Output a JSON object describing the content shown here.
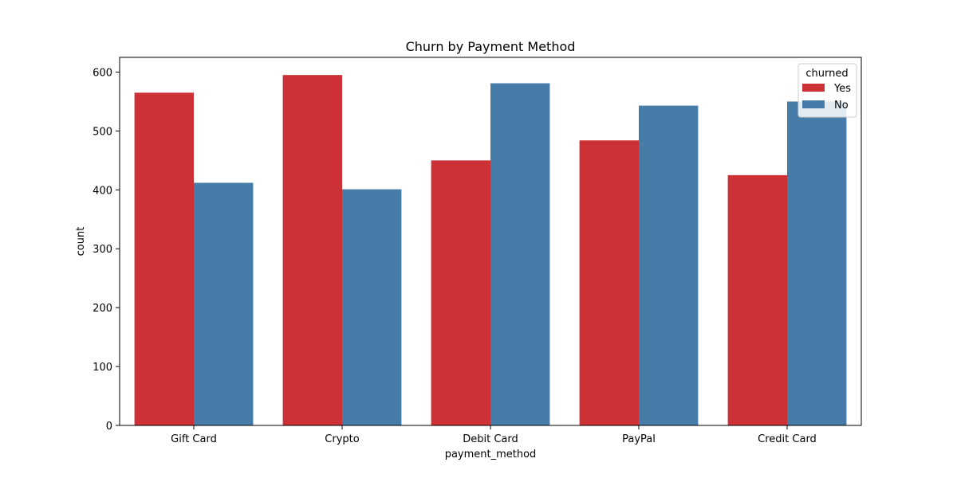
{
  "chart_data": {
    "type": "bar",
    "title": "Churn by Payment Method",
    "xlabel": "payment_method",
    "ylabel": "count",
    "categories": [
      "Gift Card",
      "Crypto",
      "Debit Card",
      "PayPal",
      "Credit Card"
    ],
    "series": [
      {
        "name": "Yes",
        "color": "#cc3135",
        "values": [
          565,
          595,
          450,
          484,
          425
        ]
      },
      {
        "name": "No",
        "color": "#477ba8",
        "values": [
          412,
          401,
          581,
          543,
          550
        ]
      }
    ],
    "ylim": [
      0,
      625
    ],
    "yticks": [
      "0",
      "100",
      "200",
      "300",
      "400",
      "500",
      "600"
    ],
    "legend": {
      "title": "churned",
      "position": "top-right"
    },
    "grid": false
  }
}
